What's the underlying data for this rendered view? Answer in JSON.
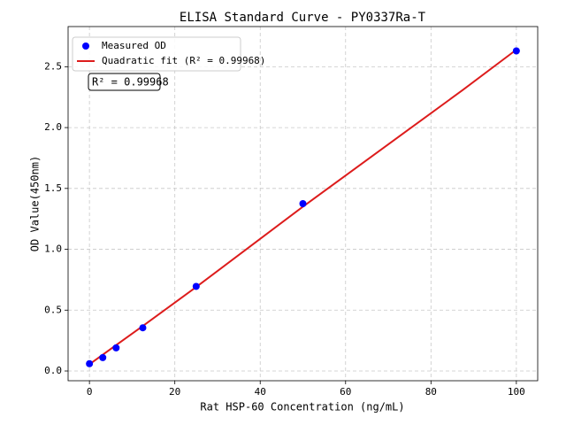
{
  "chart_data": {
    "type": "scatter",
    "title": "ELISA Standard Curve - PY0337Ra-T",
    "xlabel": "Rat HSP-60 Concentration (ng/mL)",
    "ylabel": "OD Value(450nm)",
    "annotation": "R² = 0.99968",
    "series": [
      {
        "name": "Measured OD",
        "type": "scatter",
        "color": "#0000ff",
        "x": [
          0,
          3.125,
          6.25,
          12.5,
          25,
          50,
          100
        ],
        "values": [
          0.06,
          0.11,
          0.19,
          0.355,
          0.695,
          1.375,
          2.63
        ]
      },
      {
        "name": "Quadratic fit (R² = 0.99968)",
        "type": "line",
        "color": "#dd1c1c",
        "x": [
          0,
          12.5,
          25,
          37.5,
          50,
          62.5,
          75,
          87.5,
          100
        ],
        "values": [
          0.055,
          0.37,
          0.69,
          1.02,
          1.35,
          1.67,
          1.99,
          2.31,
          2.64
        ]
      }
    ],
    "xlim": [
      -5,
      105
    ],
    "xticks": [
      0,
      20,
      40,
      60,
      80,
      100
    ],
    "ylim": [
      -0.08,
      2.83
    ],
    "yticks": [
      {
        "value": 0,
        "label": "0.0"
      },
      0.5,
      {
        "value": 1,
        "label": "1.0"
      },
      1.5,
      {
        "value": 2,
        "label": "2.0"
      },
      2.5
    ],
    "grid": true,
    "legend": "upper left"
  }
}
